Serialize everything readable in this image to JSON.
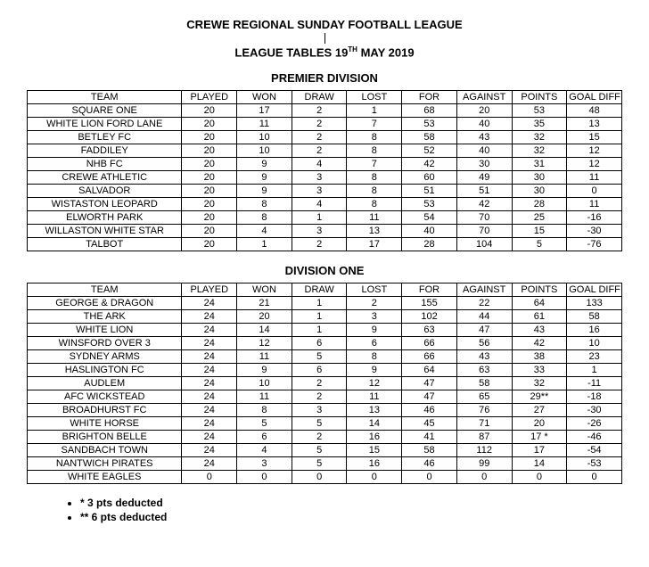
{
  "header": {
    "main_title": "CREWE REGIONAL SUNDAY FOOTBALL LEAGUE",
    "sub_title_prefix": "LEAGUE TABLES 19",
    "sub_title_sup": "TH",
    "sub_title_suffix": " MAY 2019"
  },
  "columns": [
    "TEAM",
    "PLAYED",
    "WON",
    "DRAW",
    "LOST",
    "FOR",
    "AGAINST",
    "POINTS",
    "GOAL DIFF"
  ],
  "premier": {
    "title": "PREMIER DIVISION",
    "rows": [
      [
        "SQUARE ONE",
        "20",
        "17",
        "2",
        "1",
        "68",
        "20",
        "53",
        "48"
      ],
      [
        "WHITE LION FORD LANE",
        "20",
        "11",
        "2",
        "7",
        "53",
        "40",
        "35",
        "13"
      ],
      [
        "BETLEY FC",
        "20",
        "10",
        "2",
        "8",
        "58",
        "43",
        "32",
        "15"
      ],
      [
        "FADDILEY",
        "20",
        "10",
        "2",
        "8",
        "52",
        "40",
        "32",
        "12"
      ],
      [
        "NHB FC",
        "20",
        "9",
        "4",
        "7",
        "42",
        "30",
        "31",
        "12"
      ],
      [
        "CREWE ATHLETIC",
        "20",
        "9",
        "3",
        "8",
        "60",
        "49",
        "30",
        "11"
      ],
      [
        "SALVADOR",
        "20",
        "9",
        "3",
        "8",
        "51",
        "51",
        "30",
        "0"
      ],
      [
        "WISTASTON LEOPARD",
        "20",
        "8",
        "4",
        "8",
        "53",
        "42",
        "28",
        "11"
      ],
      [
        "ELWORTH PARK",
        "20",
        "8",
        "1",
        "11",
        "54",
        "70",
        "25",
        "-16"
      ],
      [
        "WILLASTON WHITE STAR",
        "20",
        "4",
        "3",
        "13",
        "40",
        "70",
        "15",
        "-30"
      ],
      [
        "TALBOT",
        "20",
        "1",
        "2",
        "17",
        "28",
        "104",
        "5",
        "-76"
      ]
    ]
  },
  "div1": {
    "title": "DIVISION ONE",
    "rows": [
      [
        "GEORGE & DRAGON",
        "24",
        "21",
        "1",
        "2",
        "155",
        "22",
        "64",
        "133"
      ],
      [
        "THE ARK",
        "24",
        "20",
        "1",
        "3",
        "102",
        "44",
        "61",
        "58"
      ],
      [
        "WHITE LION",
        "24",
        "14",
        "1",
        "9",
        "63",
        "47",
        "43",
        "16"
      ],
      [
        "WINSFORD OVER 3",
        "24",
        "12",
        "6",
        "6",
        "66",
        "56",
        "42",
        "10"
      ],
      [
        "SYDNEY ARMS",
        "24",
        "11",
        "5",
        "8",
        "66",
        "43",
        "38",
        "23"
      ],
      [
        "HASLINGTON FC",
        "24",
        "9",
        "6",
        "9",
        "64",
        "63",
        "33",
        "1"
      ],
      [
        "AUDLEM",
        "24",
        "10",
        "2",
        "12",
        "47",
        "58",
        "32",
        "-11"
      ],
      [
        "AFC WICKSTEAD",
        "24",
        "11",
        "2",
        "11",
        "47",
        "65",
        "29**",
        "-18"
      ],
      [
        "BROADHURST FC",
        "24",
        "8",
        "3",
        "13",
        "46",
        "76",
        "27",
        "-30"
      ],
      [
        "WHITE HORSE",
        "24",
        "5",
        "5",
        "14",
        "45",
        "71",
        "20",
        "-26"
      ],
      [
        "BRIGHTON BELLE",
        "24",
        "6",
        "2",
        "16",
        "41",
        "87",
        "17 *",
        "-46"
      ],
      [
        "SANDBACH TOWN",
        "24",
        "4",
        "5",
        "15",
        "58",
        "112",
        "17",
        "-54"
      ],
      [
        "NANTWICH PIRATES",
        "24",
        "3",
        "5",
        "16",
        "46",
        "99",
        "14",
        "-53"
      ],
      [
        "WHITE EAGLES",
        "0",
        "0",
        "0",
        "0",
        "0",
        "0",
        "0",
        "0"
      ]
    ]
  },
  "notes": [
    "* 3 pts deducted",
    "** 6 pts deducted"
  ]
}
